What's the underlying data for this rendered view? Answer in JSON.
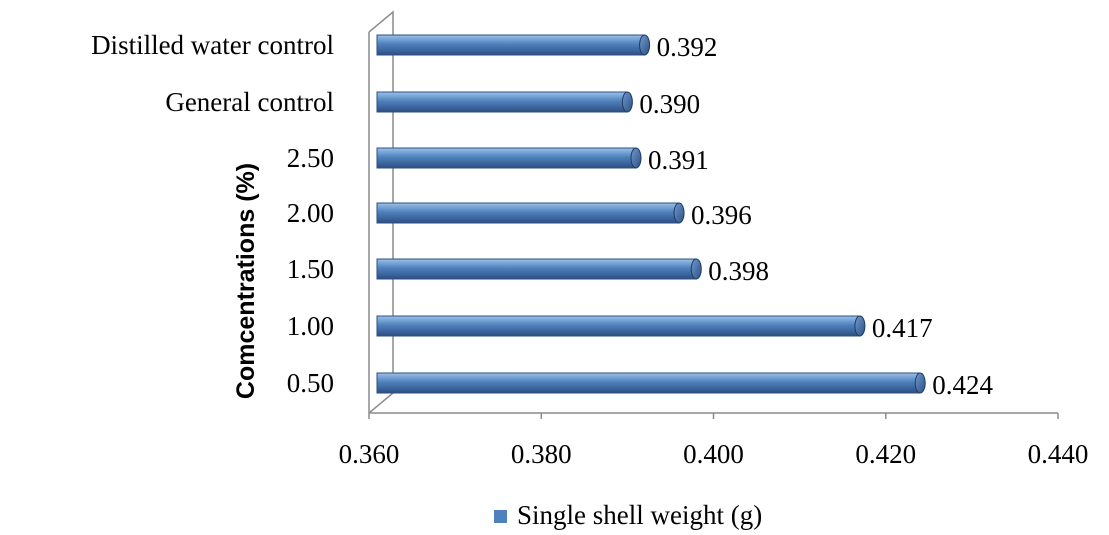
{
  "chart_data": {
    "type": "bar",
    "orientation": "horizontal",
    "categories": [
      "0.50",
      "1.00",
      "1.50",
      "2.00",
      "2.50",
      "General control",
      "Distilled water control"
    ],
    "series": [
      {
        "name": "Single shell weight (g)",
        "values": [
          0.424,
          0.417,
          0.398,
          0.396,
          0.391,
          0.39,
          0.392
        ],
        "labels": [
          "0.424",
          "0.417",
          "0.398",
          "0.396",
          "0.391",
          "0.390",
          "0.392"
        ]
      }
    ],
    "xlim": [
      0.36,
      0.44
    ],
    "xticks": [
      "0.360",
      "0.380",
      "0.400",
      "0.420",
      "0.440"
    ],
    "ylabel": "Comcentrations (%)",
    "title": "",
    "grid": false,
    "legend_position": "bottom",
    "bar_color": "#4a7ebb"
  }
}
